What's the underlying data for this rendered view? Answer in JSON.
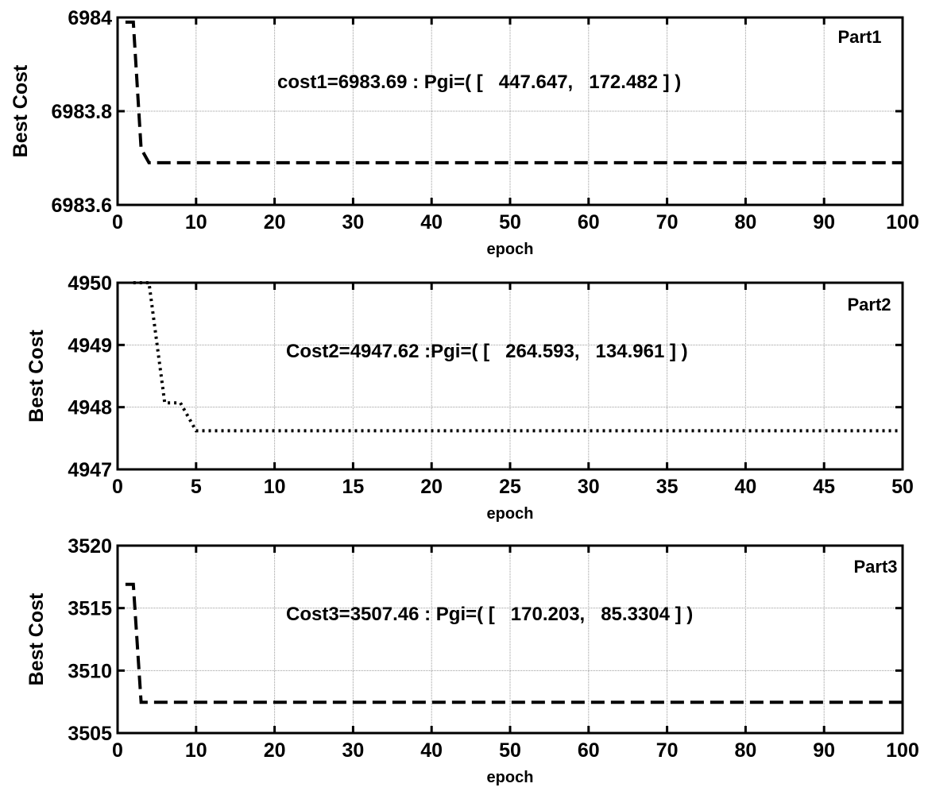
{
  "chart_data": [
    {
      "type": "line",
      "panel_label": "Part1",
      "annotation": "cost1=6983.69 : Pgi=( [   447.647,   172.482 ] )",
      "xlabel": "epoch",
      "ylabel": "Best Cost",
      "xlim": [
        0,
        100
      ],
      "ylim": [
        6983.6,
        6984
      ],
      "xticks": [
        0,
        10,
        20,
        30,
        40,
        50,
        60,
        70,
        80,
        90,
        100
      ],
      "xtick_labels": [
        "0",
        "10",
        "20",
        "30",
        "40",
        "50",
        "60",
        "70",
        "80",
        "90",
        "100"
      ],
      "yticks": [
        6983.6,
        6983.8,
        6984
      ],
      "ytick_labels": [
        "6983.6",
        "6983.8",
        "6984"
      ],
      "grid": true,
      "line_style": "dashed",
      "series": [
        {
          "x": [
            1,
            2,
            3,
            4,
            100
          ],
          "y": [
            6983.99,
            6983.99,
            6983.72,
            6983.69,
            6983.69
          ]
        }
      ]
    },
    {
      "type": "line",
      "panel_label": "Part2",
      "annotation": "Cost2=4947.62 :Pgi=( [   264.593,   134.961 ] )",
      "xlabel": "epoch",
      "ylabel": "Best Cost",
      "xlim": [
        0,
        50
      ],
      "ylim": [
        4947,
        4950
      ],
      "xticks": [
        0,
        5,
        10,
        15,
        20,
        25,
        30,
        35,
        40,
        45,
        50
      ],
      "xtick_labels": [
        "0",
        "5",
        "10",
        "15",
        "20",
        "25",
        "30",
        "35",
        "40",
        "45",
        "50"
      ],
      "yticks": [
        4947,
        4948,
        4949,
        4950
      ],
      "ytick_labels": [
        "4947",
        "4948",
        "4949",
        "4950"
      ],
      "grid": true,
      "line_style": "dotted",
      "series": [
        {
          "x": [
            1,
            2,
            3,
            4,
            5,
            50
          ],
          "y": [
            4950,
            4950,
            4948.07,
            4948.07,
            4947.62,
            4947.62
          ]
        }
      ]
    },
    {
      "type": "line",
      "panel_label": "Part3",
      "annotation": "Cost3=3507.46 : Pgi=( [   170.203,   85.3304 ] )",
      "xlabel": "epoch",
      "ylabel": "Best Cost",
      "xlim": [
        0,
        100
      ],
      "ylim": [
        3505,
        3520
      ],
      "xticks": [
        0,
        10,
        20,
        30,
        40,
        50,
        60,
        70,
        80,
        90,
        100
      ],
      "xtick_labels": [
        "0",
        "10",
        "20",
        "30",
        "40",
        "50",
        "60",
        "70",
        "80",
        "90",
        "100"
      ],
      "yticks": [
        3505,
        3510,
        3515,
        3520
      ],
      "ytick_labels": [
        "3505",
        "3510",
        "3515",
        "3520"
      ],
      "grid": true,
      "line_style": "dashed",
      "series": [
        {
          "x": [
            1,
            2,
            3,
            100
          ],
          "y": [
            3516.9,
            3516.9,
            3507.46,
            3507.46
          ]
        }
      ]
    }
  ]
}
